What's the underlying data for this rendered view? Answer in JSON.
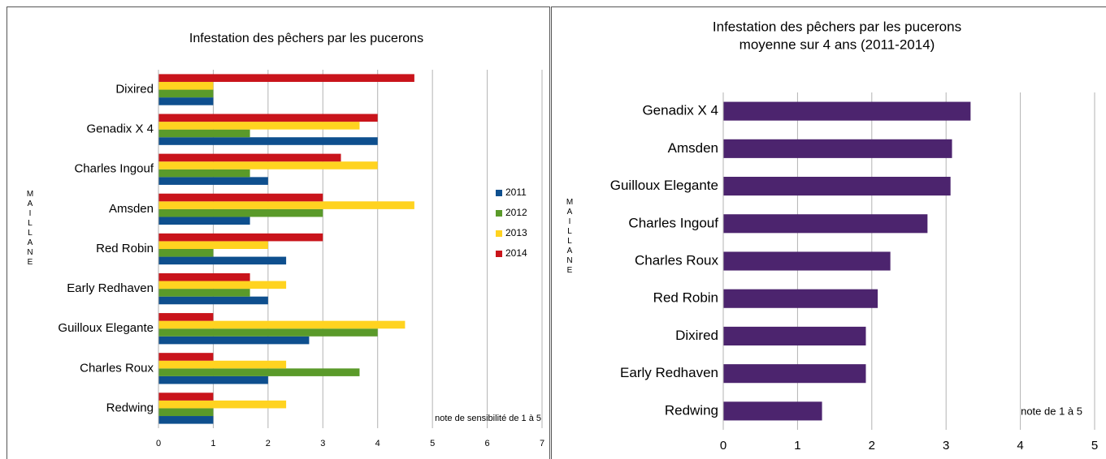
{
  "chart_data": [
    {
      "type": "barh",
      "title": "Infestation des pêchers par les pucerons",
      "y_label": "MAILLANE",
      "annotation": "note de sensibilité de 1 à 5",
      "categories": [
        "Dixired",
        "Genadix X 4",
        "Charles Ingouf",
        "Amsden",
        "Red Robin",
        "Early Redhaven",
        "Guilloux Elegante",
        "Charles Roux",
        "Redwing"
      ],
      "series": [
        {
          "name": "2011",
          "color": "#0e4f8e",
          "values": [
            1,
            4,
            2,
            1.67,
            2.33,
            2,
            2.75,
            2,
            1
          ]
        },
        {
          "name": "2012",
          "color": "#5a9a2a",
          "values": [
            1,
            1.67,
            1.67,
            3,
            1,
            1.67,
            4,
            3.67,
            1
          ]
        },
        {
          "name": "2013",
          "color": "#ffd320",
          "values": [
            1,
            3.67,
            4,
            4.67,
            2,
            2.33,
            4.5,
            2.33,
            2.33
          ]
        },
        {
          "name": "2014",
          "color": "#c9141b",
          "values": [
            4.67,
            4,
            3.33,
            3,
            3,
            1.67,
            1,
            1,
            1
          ]
        }
      ],
      "xlim": [
        0,
        7
      ],
      "xticks": [
        0,
        1,
        2,
        3,
        4,
        5,
        6,
        7
      ],
      "grid": true,
      "legend": "right"
    },
    {
      "type": "barh",
      "title": "Infestation des pêchers par les pucerons",
      "subtitle": "moyenne sur 4 ans (2011-2014)",
      "y_label": "MAILLANE",
      "annotation": "note de 1 à 5",
      "categories": [
        "Genadix X 4",
        "Amsden",
        "Guilloux Elegante",
        "Charles Ingouf",
        "Charles Roux",
        "Red Robin",
        "Dixired",
        "Early Redhaven",
        "Redwing"
      ],
      "series": [
        {
          "color": "#4c246e",
          "values": [
            3.33,
            3.08,
            3.06,
            2.75,
            2.25,
            2.08,
            1.92,
            1.92,
            1.33
          ]
        }
      ],
      "xlim": [
        0,
        5
      ],
      "xticks": [
        0,
        1,
        2,
        3,
        4,
        5
      ],
      "grid": true
    }
  ]
}
